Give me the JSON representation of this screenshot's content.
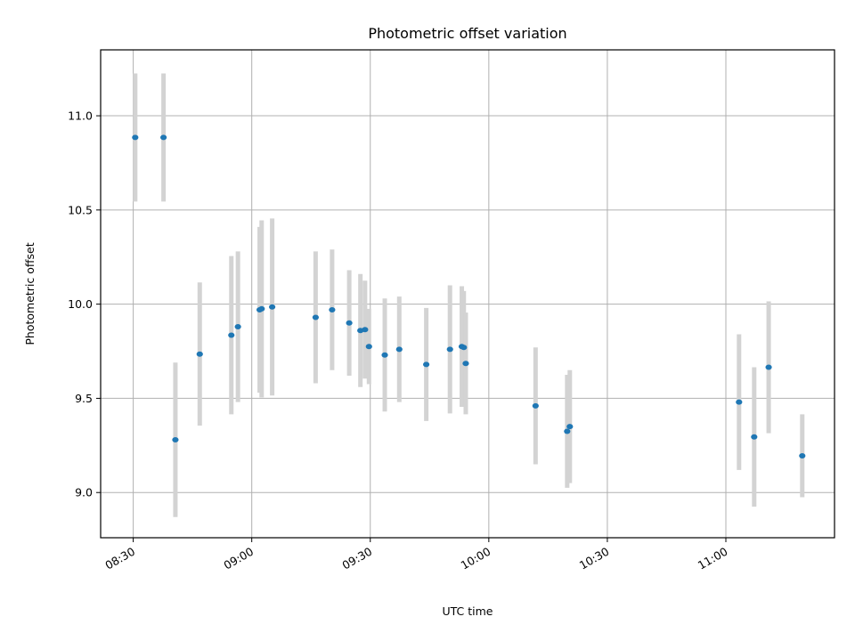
{
  "chart_data": {
    "type": "scatter",
    "title": "Photometric offset variation",
    "xlabel": "UTC time",
    "ylabel": "Photometric offset",
    "x_ticks": [
      "08:30",
      "09:00",
      "09:30",
      "10:00",
      "10:30",
      "11:00"
    ],
    "x_tick_times": [
      "08:30",
      "09:00",
      "09:30",
      "10:00",
      "10:30",
      "11:00"
    ],
    "y_ticks": [
      "9.0",
      "9.5",
      "10.0",
      "10.5",
      "11.0"
    ],
    "y_tick_values": [
      9.0,
      9.5,
      10.0,
      10.5,
      11.0
    ],
    "xlim": [
      "08:21:45",
      "11:27:30"
    ],
    "ylim": [
      8.76,
      11.35
    ],
    "grid": true,
    "marker_color": "#1f77b4",
    "errorbar_color": "#d3d3d3",
    "points": [
      {
        "t": "08:30:30",
        "y": 10.885,
        "err": 0.34
      },
      {
        "t": "08:37:40",
        "y": 10.885,
        "err": 0.34
      },
      {
        "t": "08:40:40",
        "y": 9.28,
        "err": 0.41
      },
      {
        "t": "08:46:50",
        "y": 9.735,
        "err": 0.38
      },
      {
        "t": "08:54:50",
        "y": 9.835,
        "err": 0.42
      },
      {
        "t": "08:56:30",
        "y": 9.88,
        "err": 0.4
      },
      {
        "t": "09:02:00",
        "y": 9.97,
        "err": 0.44
      },
      {
        "t": "09:02:30",
        "y": 9.975,
        "err": 0.47
      },
      {
        "t": "09:05:10",
        "y": 9.985,
        "err": 0.47
      },
      {
        "t": "09:16:10",
        "y": 9.93,
        "err": 0.35
      },
      {
        "t": "09:20:20",
        "y": 9.97,
        "err": 0.32
      },
      {
        "t": "09:24:40",
        "y": 9.9,
        "err": 0.28
      },
      {
        "t": "09:27:30",
        "y": 9.86,
        "err": 0.3
      },
      {
        "t": "09:28:40",
        "y": 9.865,
        "err": 0.26
      },
      {
        "t": "09:29:40",
        "y": 9.775,
        "err": 0.2
      },
      {
        "t": "09:33:40",
        "y": 9.73,
        "err": 0.3
      },
      {
        "t": "09:37:20",
        "y": 9.76,
        "err": 0.28
      },
      {
        "t": "09:44:10",
        "y": 9.68,
        "err": 0.3
      },
      {
        "t": "09:50:10",
        "y": 9.76,
        "err": 0.34
      },
      {
        "t": "09:53:10",
        "y": 9.775,
        "err": 0.32
      },
      {
        "t": "09:53:40",
        "y": 9.77,
        "err": 0.3
      },
      {
        "t": "09:54:10",
        "y": 9.685,
        "err": 0.27
      },
      {
        "t": "10:11:50",
        "y": 9.46,
        "err": 0.31
      },
      {
        "t": "10:19:50",
        "y": 9.325,
        "err": 0.3
      },
      {
        "t": "10:20:30",
        "y": 9.35,
        "err": 0.3
      },
      {
        "t": "11:07:10",
        "y": 9.295,
        "err": 0.37
      },
      {
        "t": "11:03:20",
        "y": 9.48,
        "err": 0.36
      },
      {
        "t": "11:10:50",
        "y": 9.665,
        "err": 0.35
      },
      {
        "t": "11:19:20",
        "y": 9.195,
        "err": 0.22
      }
    ]
  }
}
